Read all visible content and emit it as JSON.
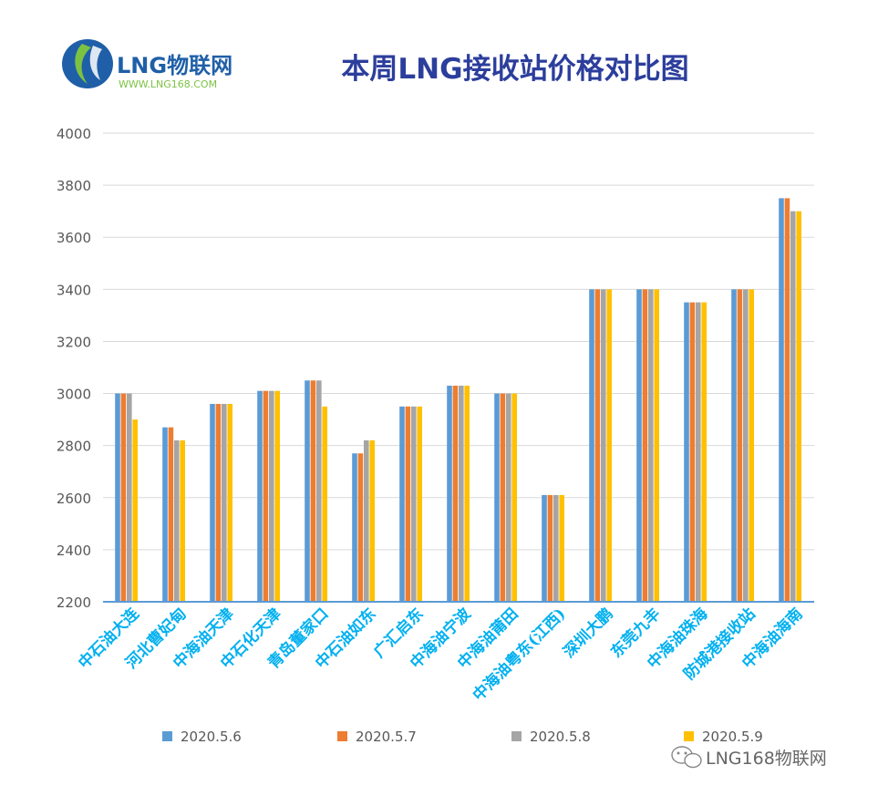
{
  "logo": {
    "brand": "LNG物联网",
    "url": "WWW.LNG168.COM"
  },
  "watermark": "LNG168物联网",
  "colors": {
    "title": "#2c3e9c",
    "axis": "#5b9bd5",
    "tick_label": "#595959",
    "category_label": "#00b0f0",
    "grid": "#d9d9d9"
  },
  "chart_data": {
    "type": "bar",
    "title": "本周LNG接收站价格对比图",
    "xlabel": "",
    "ylabel": "",
    "ylim": [
      2200,
      4000
    ],
    "yticks": [
      2200,
      2400,
      2600,
      2800,
      3000,
      3200,
      3400,
      3600,
      3800,
      4000
    ],
    "grid": true,
    "legend_position": "bottom",
    "categories": [
      "中石油大连",
      "河北曹妃甸",
      "中海油天津",
      "中石化天津",
      "青岛董家口",
      "中石油如东",
      "广汇启东",
      "中海油宁波",
      "中海油莆田",
      "中海油粤东(江西)",
      "深圳大鹏",
      "东莞九丰",
      "中海油珠海",
      "防城港接收站",
      "中海油海南"
    ],
    "series": [
      {
        "name": "2020.5.6",
        "color": "#5b9bd5",
        "values": [
          3000,
          2870,
          2960,
          3010,
          3050,
          2770,
          2950,
          3030,
          3000,
          2610,
          3400,
          3400,
          3350,
          3400,
          3750
        ]
      },
      {
        "name": "2020.5.7",
        "color": "#ed7d31",
        "values": [
          3000,
          2870,
          2960,
          3010,
          3050,
          2770,
          2950,
          3030,
          3000,
          2610,
          3400,
          3400,
          3350,
          3400,
          3750
        ]
      },
      {
        "name": "2020.5.8",
        "color": "#a5a5a5",
        "values": [
          3000,
          2820,
          2960,
          3010,
          3050,
          2820,
          2950,
          3030,
          3000,
          2610,
          3400,
          3400,
          3350,
          3400,
          3700
        ]
      },
      {
        "name": "2020.5.9",
        "color": "#ffc000",
        "values": [
          2900,
          2820,
          2960,
          3010,
          2950,
          2820,
          2950,
          3030,
          3000,
          2610,
          3400,
          3400,
          3350,
          3400,
          3700
        ]
      }
    ]
  }
}
